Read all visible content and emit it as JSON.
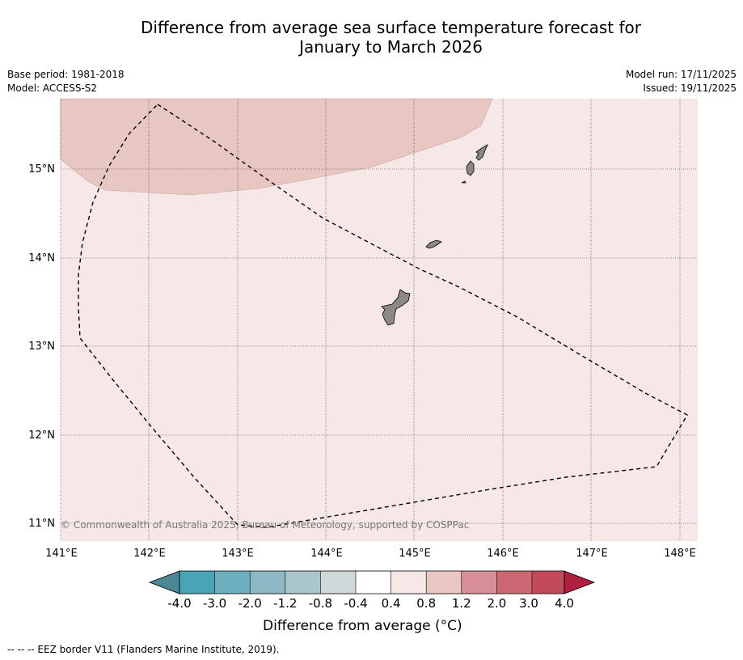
{
  "header": {
    "title_line1": "Difference from average sea surface temperature forecast for",
    "title_line2": "January to March 2026"
  },
  "meta": {
    "base_period": "Base period: 1981-2018",
    "model": "Model: ACCESS-S2",
    "model_run": "Model run: 17/11/2025",
    "issued": "Issued: 19/11/2025"
  },
  "map": {
    "lon_labels": [
      "141°E",
      "142°E",
      "143°E",
      "144°E",
      "145°E",
      "146°E",
      "147°E",
      "148°E"
    ],
    "lat_labels": [
      "15°N",
      "14°N",
      "13°N",
      "12°N",
      "11°N"
    ],
    "copyright": "© Commonwealth of Australia 2025, Bureau of Meteorology, supported by COSPPac",
    "colors": {
      "background": "#f5e8e6",
      "warm_anomaly": "#e8c6c2",
      "land": "#8c8886"
    },
    "features": [
      "Guam",
      "Rota",
      "Tinian",
      "Saipan",
      "EEZ boundary"
    ]
  },
  "colorbar": {
    "ticks": [
      "-4.0",
      "-3.0",
      "-2.0",
      "-1.2",
      "-0.8",
      "-0.4",
      "0.4",
      "0.8",
      "1.2",
      "2.0",
      "3.0",
      "4.0"
    ],
    "colors": [
      "#4b8795",
      "#4aa4b8",
      "#6eafbf",
      "#8cb8c3",
      "#a9c7cb",
      "#d0d7d9",
      "#ffffff",
      "#f5e8e6",
      "#e8c6c2",
      "#d88f97",
      "#cb6873",
      "#c24b5b",
      "#b11f3e"
    ],
    "label": "Difference from average (°C)"
  },
  "footer": {
    "legend_line": "--  --  -- EEZ border V11 (Flanders Marine Institute, 2019)."
  }
}
